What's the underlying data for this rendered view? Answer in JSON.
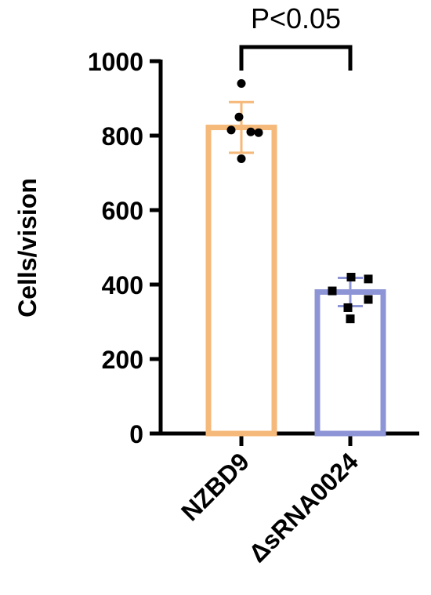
{
  "chart_data": {
    "type": "bar",
    "title": "",
    "xlabel": "",
    "ylabel": "Cells/vision",
    "ylim": [
      0,
      1000
    ],
    "yticks": [
      0,
      200,
      400,
      600,
      800,
      1000
    ],
    "grid": false,
    "categories": [
      "NZBD9",
      "ΔsRNA0024"
    ],
    "values": [
      822,
      380
    ],
    "errors": [
      68,
      38
    ],
    "bar_colors": [
      "#F5B97A",
      "#8E95D6"
    ],
    "points": [
      [
        940,
        850,
        815,
        808,
        738,
        810
      ],
      [
        420,
        415,
        383,
        360,
        338,
        308
      ]
    ],
    "point_markers": [
      "circle",
      "square"
    ],
    "annotation": {
      "text": "P<0.05",
      "between": [
        0,
        1
      ]
    }
  }
}
